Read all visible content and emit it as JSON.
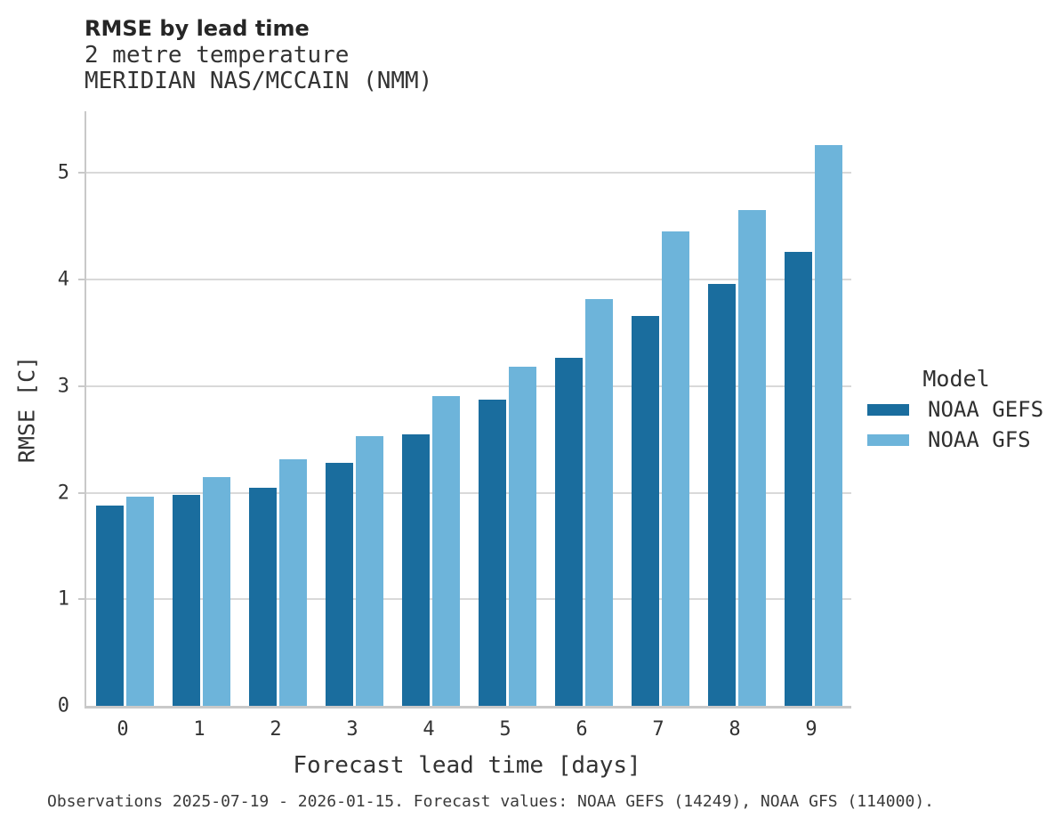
{
  "chart_data": {
    "type": "bar",
    "title": "RMSE by lead time",
    "subtitle_lines": [
      "2 metre temperature",
      "MERIDIAN NAS/MCCAIN (NMM)"
    ],
    "categories": [
      "0",
      "1",
      "2",
      "3",
      "4",
      "5",
      "6",
      "7",
      "8",
      "9"
    ],
    "series": [
      {
        "name": "NOAA GEFS",
        "color": "#1a6d9e",
        "values": [
          1.88,
          1.98,
          2.05,
          2.28,
          2.55,
          2.87,
          3.27,
          3.66,
          3.96,
          4.26
        ]
      },
      {
        "name": "NOAA GFS",
        "color": "#6db4da",
        "values": [
          1.96,
          2.15,
          2.31,
          2.53,
          2.91,
          3.18,
          3.82,
          4.45,
          4.65,
          5.26
        ]
      }
    ],
    "xlabel": "Forecast lead time [days]",
    "ylabel": "RMSE [C]",
    "ylim": [
      0,
      5.58
    ],
    "yticks": [
      0,
      1,
      2,
      3,
      4,
      5
    ],
    "grid": true,
    "grid_color": "#d9d9d9",
    "spine_color": "#c9c9c9",
    "legend": {
      "title": "Model",
      "position": "right"
    },
    "footnote": "Observations 2025-07-19 - 2026-01-15. Forecast values: NOAA GEFS (14249), NOAA GFS (114000)."
  }
}
